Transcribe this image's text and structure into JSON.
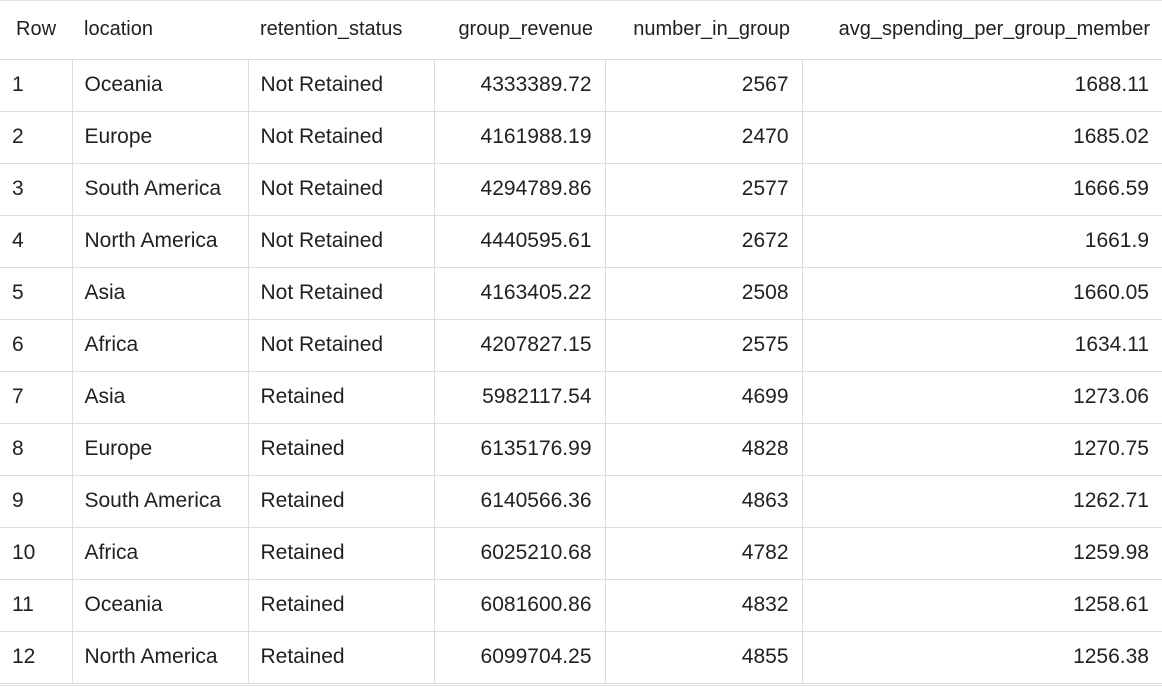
{
  "table": {
    "headers": [
      "Row",
      "location",
      "retention_status",
      "group_revenue",
      "number_in_group",
      "avg_spending_per_group_member"
    ],
    "rows": [
      {
        "row": "1",
        "location": "Oceania",
        "retention_status": "Not Retained",
        "group_revenue": "4333389.72",
        "number_in_group": "2567",
        "avg_spending": "1688.11"
      },
      {
        "row": "2",
        "location": "Europe",
        "retention_status": "Not Retained",
        "group_revenue": "4161988.19",
        "number_in_group": "2470",
        "avg_spending": "1685.02"
      },
      {
        "row": "3",
        "location": "South America",
        "retention_status": "Not Retained",
        "group_revenue": "4294789.86",
        "number_in_group": "2577",
        "avg_spending": "1666.59"
      },
      {
        "row": "4",
        "location": "North America",
        "retention_status": "Not Retained",
        "group_revenue": "4440595.61",
        "number_in_group": "2672",
        "avg_spending": "1661.9"
      },
      {
        "row": "5",
        "location": "Asia",
        "retention_status": "Not Retained",
        "group_revenue": "4163405.22",
        "number_in_group": "2508",
        "avg_spending": "1660.05"
      },
      {
        "row": "6",
        "location": "Africa",
        "retention_status": "Not Retained",
        "group_revenue": "4207827.15",
        "number_in_group": "2575",
        "avg_spending": "1634.11"
      },
      {
        "row": "7",
        "location": "Asia",
        "retention_status": "Retained",
        "group_revenue": "5982117.54",
        "number_in_group": "4699",
        "avg_spending": "1273.06"
      },
      {
        "row": "8",
        "location": "Europe",
        "retention_status": "Retained",
        "group_revenue": "6135176.99",
        "number_in_group": "4828",
        "avg_spending": "1270.75"
      },
      {
        "row": "9",
        "location": "South America",
        "retention_status": "Retained",
        "group_revenue": "6140566.36",
        "number_in_group": "4863",
        "avg_spending": "1262.71"
      },
      {
        "row": "10",
        "location": "Africa",
        "retention_status": "Retained",
        "group_revenue": "6025210.68",
        "number_in_group": "4782",
        "avg_spending": "1259.98"
      },
      {
        "row": "11",
        "location": "Oceania",
        "retention_status": "Retained",
        "group_revenue": "6081600.86",
        "number_in_group": "4832",
        "avg_spending": "1258.61"
      },
      {
        "row": "12",
        "location": "North America",
        "retention_status": "Retained",
        "group_revenue": "6099704.25",
        "number_in_group": "4855",
        "avg_spending": "1256.38"
      }
    ]
  },
  "colors": {
    "text": "#202124",
    "grid_line": "#dadce0",
    "background": "#ffffff"
  }
}
